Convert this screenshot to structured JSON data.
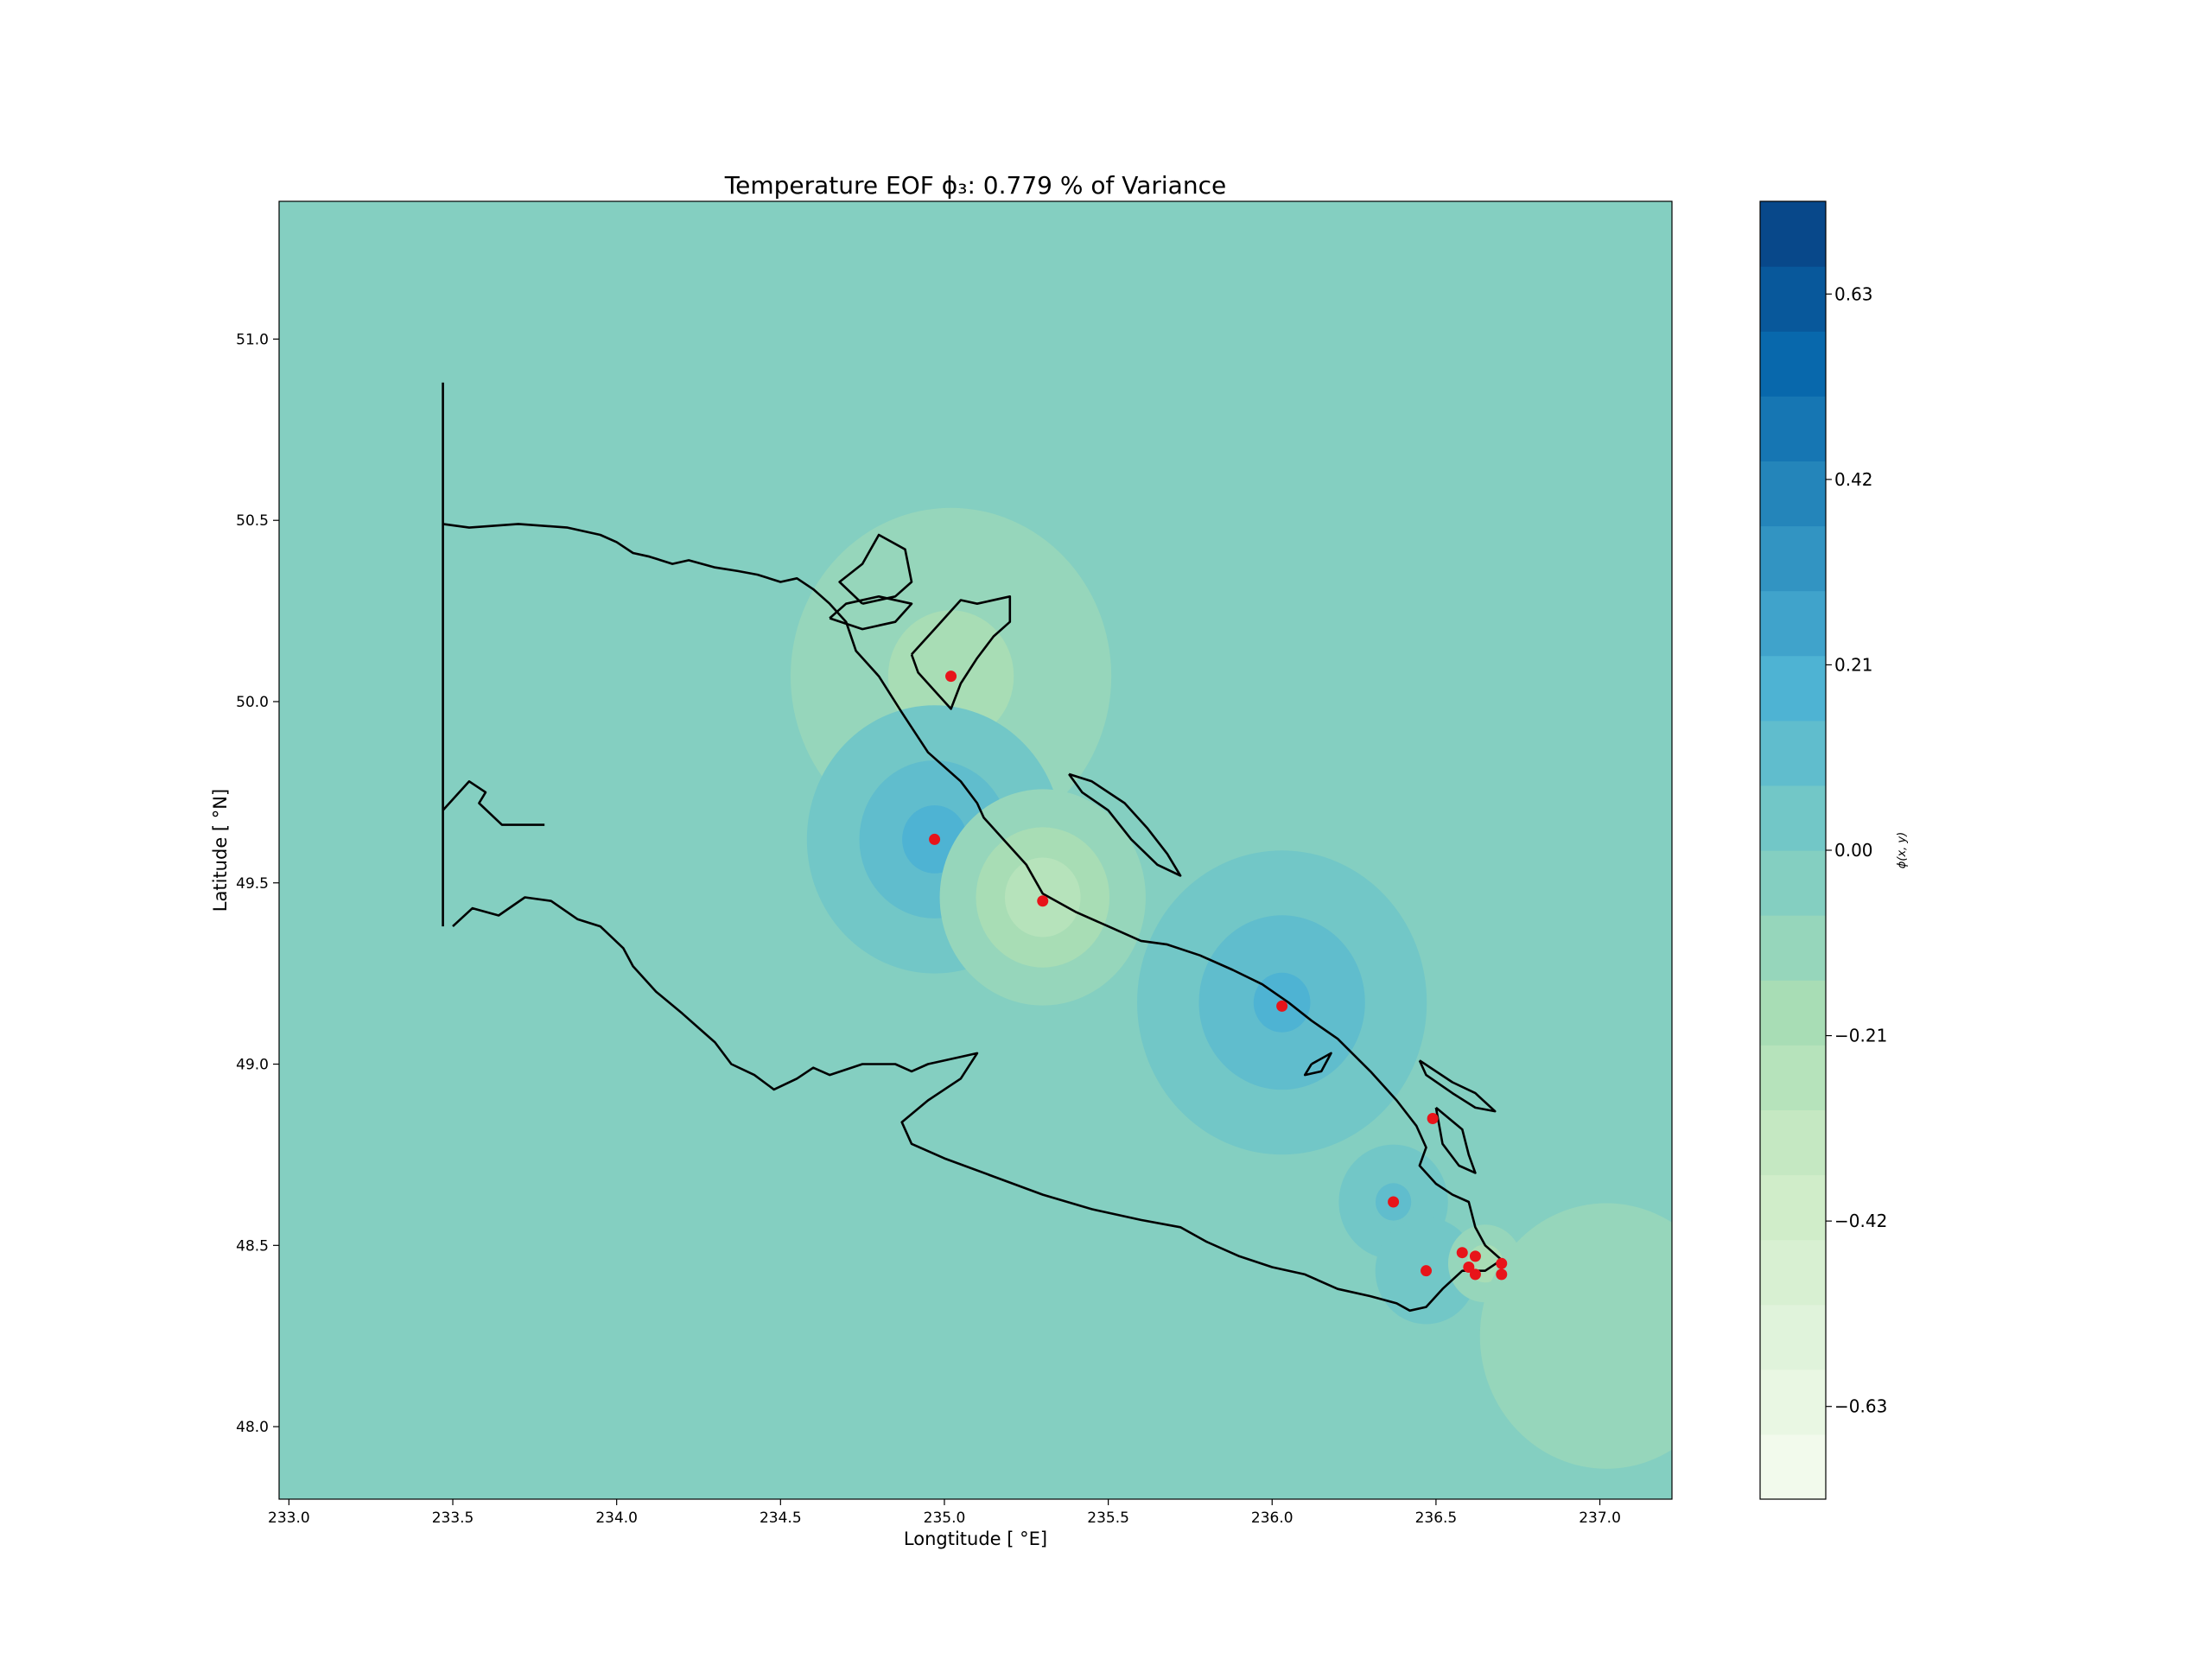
{
  "chart_data": {
    "type": "heatmap",
    "title": "Temperature EOF ϕ₃: 0.779 % of Variance",
    "xlabel": "Longtitude [ °E]",
    "ylabel": "Latitude [ °N]",
    "xlim": [
      232.97,
      237.22
    ],
    "ylim": [
      47.8,
      51.38
    ],
    "xticks": [
      233.0,
      233.5,
      234.0,
      234.5,
      235.0,
      235.5,
      236.0,
      236.5,
      237.0
    ],
    "xtick_labels": [
      "233.0",
      "233.5",
      "234.0",
      "234.5",
      "235.0",
      "235.5",
      "236.0",
      "236.5",
      "237.0"
    ],
    "yticks": [
      48.0,
      48.5,
      49.0,
      49.5,
      50.0,
      50.5,
      51.0
    ],
    "ytick_labels": [
      "48.0",
      "48.5",
      "49.0",
      "49.5",
      "50.0",
      "50.5",
      "51.0"
    ],
    "colorbar": {
      "label": "ϕ(x, y)",
      "range": [
        -0.735,
        0.735
      ],
      "levels": 20,
      "ticks": [
        -0.63,
        -0.42,
        -0.21,
        0.0,
        0.21,
        0.42,
        0.63
      ],
      "tick_labels": [
        "−0.63",
        "−0.42",
        "−0.21",
        "0.00",
        "0.21",
        "0.42",
        "0.63"
      ],
      "colormap": "GnBu"
    },
    "background_value": -0.03,
    "field_blobs": [
      {
        "lon": 235.02,
        "lat": 50.07,
        "amplitude": -0.14,
        "scale": 0.32
      },
      {
        "lon": 234.97,
        "lat": 49.62,
        "amplitude": 0.2,
        "scale": 0.2
      },
      {
        "lon": 235.3,
        "lat": 49.46,
        "amplitude": -0.24,
        "scale": 0.17
      },
      {
        "lon": 236.03,
        "lat": 49.17,
        "amplitude": 0.19,
        "scale": 0.23
      },
      {
        "lon": 236.37,
        "lat": 48.62,
        "amplitude": 0.12,
        "scale": 0.1
      },
      {
        "lon": 236.47,
        "lat": 48.43,
        "amplitude": 0.1,
        "scale": 0.1
      },
      {
        "lon": 236.65,
        "lat": 48.45,
        "amplitude": -0.16,
        "scale": 0.07
      },
      {
        "lon": 237.02,
        "lat": 48.25,
        "amplitude": -0.09,
        "scale": 0.32
      },
      {
        "lon": 236.5,
        "lat": 48.85,
        "amplitude": -0.04,
        "scale": 0.12
      }
    ],
    "stations": [
      {
        "lon": 235.02,
        "lat": 50.07
      },
      {
        "lon": 234.97,
        "lat": 49.62
      },
      {
        "lon": 235.3,
        "lat": 49.45
      },
      {
        "lon": 236.03,
        "lat": 49.16
      },
      {
        "lon": 236.49,
        "lat": 48.85
      },
      {
        "lon": 236.37,
        "lat": 48.62
      },
      {
        "lon": 236.47,
        "lat": 48.43
      },
      {
        "lon": 236.58,
        "lat": 48.48
      },
      {
        "lon": 236.6,
        "lat": 48.44
      },
      {
        "lon": 236.62,
        "lat": 48.47
      },
      {
        "lon": 236.62,
        "lat": 48.42
      },
      {
        "lon": 236.7,
        "lat": 48.45
      },
      {
        "lon": 236.7,
        "lat": 48.42
      }
    ],
    "coastline": [
      [
        [
          233.47,
          50.88
        ],
        [
          233.47,
          49.38
        ]
      ],
      [
        [
          233.47,
          50.49
        ],
        [
          233.55,
          50.48
        ],
        [
          233.7,
          50.49
        ],
        [
          233.85,
          50.48
        ],
        [
          233.95,
          50.46
        ],
        [
          234.0,
          50.44
        ],
        [
          234.05,
          50.41
        ],
        [
          234.1,
          50.4
        ],
        [
          234.17,
          50.38
        ],
        [
          234.22,
          50.39
        ],
        [
          234.3,
          50.37
        ],
        [
          234.37,
          50.36
        ],
        [
          234.43,
          50.35
        ],
        [
          234.5,
          50.33
        ],
        [
          234.55,
          50.34
        ],
        [
          234.6,
          50.31
        ],
        [
          234.65,
          50.27
        ],
        [
          234.7,
          50.22
        ],
        [
          234.73,
          50.14
        ],
        [
          234.8,
          50.07
        ],
        [
          234.87,
          49.97
        ],
        [
          234.95,
          49.86
        ],
        [
          235.05,
          49.78
        ],
        [
          235.1,
          49.72
        ],
        [
          235.12,
          49.68
        ],
        [
          235.18,
          49.62
        ],
        [
          235.25,
          49.55
        ],
        [
          235.3,
          49.47
        ],
        [
          235.4,
          49.42
        ],
        [
          235.5,
          49.38
        ],
        [
          235.6,
          49.34
        ],
        [
          235.68,
          49.33
        ],
        [
          235.78,
          49.3
        ],
        [
          235.88,
          49.26
        ],
        [
          235.97,
          49.22
        ],
        [
          236.05,
          49.17
        ],
        [
          236.12,
          49.12
        ],
        [
          236.2,
          49.07
        ],
        [
          236.3,
          48.98
        ],
        [
          236.38,
          48.9
        ],
        [
          236.44,
          48.83
        ],
        [
          236.47,
          48.77
        ],
        [
          236.45,
          48.72
        ],
        [
          236.5,
          48.67
        ],
        [
          236.55,
          48.64
        ],
        [
          236.6,
          48.62
        ],
        [
          236.62,
          48.55
        ],
        [
          236.65,
          48.5
        ],
        [
          236.7,
          48.46
        ],
        [
          236.65,
          48.43
        ],
        [
          236.58,
          48.43
        ],
        [
          236.52,
          48.38
        ],
        [
          236.47,
          48.33
        ],
        [
          236.42,
          48.32
        ],
        [
          236.38,
          48.34
        ],
        [
          236.3,
          48.36
        ],
        [
          236.2,
          48.38
        ],
        [
          236.1,
          48.42
        ],
        [
          236.0,
          48.44
        ],
        [
          235.9,
          48.47
        ],
        [
          235.8,
          48.51
        ],
        [
          235.72,
          48.55
        ],
        [
          235.6,
          48.57
        ],
        [
          235.45,
          48.6
        ],
        [
          235.3,
          48.64
        ],
        [
          235.15,
          48.69
        ],
        [
          235.0,
          48.74
        ],
        [
          234.9,
          48.78
        ],
        [
          234.87,
          48.84
        ],
        [
          234.95,
          48.9
        ],
        [
          235.05,
          48.96
        ],
        [
          235.1,
          49.03
        ],
        [
          235.05,
          49.02
        ],
        [
          234.95,
          49.0
        ],
        [
          234.9,
          48.98
        ],
        [
          234.85,
          49.0
        ],
        [
          234.75,
          49.0
        ],
        [
          234.65,
          48.97
        ],
        [
          234.6,
          48.99
        ],
        [
          234.55,
          48.96
        ],
        [
          234.48,
          48.93
        ],
        [
          234.42,
          48.97
        ],
        [
          234.35,
          49.0
        ],
        [
          234.3,
          49.06
        ],
        [
          234.25,
          49.1
        ],
        [
          234.2,
          49.14
        ],
        [
          234.12,
          49.2
        ],
        [
          234.05,
          49.27
        ],
        [
          234.02,
          49.32
        ],
        [
          233.95,
          49.38
        ],
        [
          233.88,
          49.4
        ],
        [
          233.8,
          49.45
        ],
        [
          233.72,
          49.46
        ],
        [
          233.64,
          49.41
        ],
        [
          233.56,
          49.43
        ],
        [
          233.5,
          49.38
        ]
      ],
      [
        [
          233.47,
          49.7
        ],
        [
          233.55,
          49.78
        ],
        [
          233.6,
          49.75
        ],
        [
          233.58,
          49.72
        ],
        [
          233.65,
          49.66
        ],
        [
          233.78,
          49.66
        ]
      ],
      [
        [
          234.75,
          50.27
        ],
        [
          234.85,
          50.29
        ],
        [
          234.9,
          50.33
        ],
        [
          234.88,
          50.42
        ],
        [
          234.8,
          50.46
        ],
        [
          234.75,
          50.38
        ],
        [
          234.68,
          50.33
        ],
        [
          234.75,
          50.27
        ]
      ],
      [
        [
          234.65,
          50.23
        ],
        [
          234.75,
          50.2
        ],
        [
          234.85,
          50.22
        ],
        [
          234.9,
          50.27
        ],
        [
          234.8,
          50.29
        ],
        [
          234.7,
          50.27
        ],
        [
          234.65,
          50.23
        ]
      ],
      [
        [
          234.9,
          50.13
        ],
        [
          234.97,
          50.2
        ],
        [
          235.05,
          50.28
        ],
        [
          235.1,
          50.27
        ],
        [
          235.2,
          50.29
        ],
        [
          235.2,
          50.22
        ],
        [
          235.15,
          50.18
        ],
        [
          235.1,
          50.12
        ],
        [
          235.05,
          50.05
        ],
        [
          235.02,
          49.98
        ],
        [
          234.98,
          50.02
        ],
        [
          234.92,
          50.08
        ],
        [
          234.9,
          50.13
        ]
      ],
      [
        [
          235.38,
          49.8
        ],
        [
          235.45,
          49.78
        ],
        [
          235.55,
          49.72
        ],
        [
          235.62,
          49.65
        ],
        [
          235.68,
          49.58
        ],
        [
          235.72,
          49.52
        ],
        [
          235.65,
          49.55
        ],
        [
          235.57,
          49.62
        ],
        [
          235.5,
          49.7
        ],
        [
          235.42,
          49.75
        ],
        [
          235.38,
          49.8
        ]
      ],
      [
        [
          236.12,
          49.0
        ],
        [
          236.18,
          49.03
        ],
        [
          236.15,
          48.98
        ],
        [
          236.1,
          48.97
        ],
        [
          236.12,
          49.0
        ]
      ],
      [
        [
          236.45,
          49.01
        ],
        [
          236.55,
          48.95
        ],
        [
          236.62,
          48.92
        ],
        [
          236.68,
          48.87
        ],
        [
          236.62,
          48.88
        ],
        [
          236.55,
          48.92
        ],
        [
          236.47,
          48.97
        ],
        [
          236.45,
          49.01
        ]
      ],
      [
        [
          236.5,
          48.88
        ],
        [
          236.58,
          48.82
        ],
        [
          236.6,
          48.75
        ],
        [
          236.62,
          48.7
        ],
        [
          236.57,
          48.72
        ],
        [
          236.52,
          48.78
        ],
        [
          236.5,
          48.88
        ]
      ]
    ]
  }
}
